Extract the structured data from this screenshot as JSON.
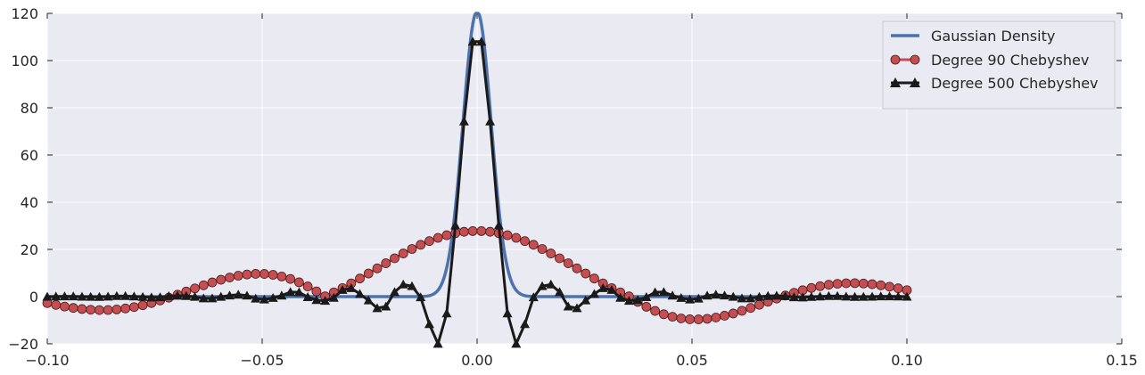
{
  "chart_data": {
    "type": "line",
    "title": "",
    "xlabel": "",
    "ylabel": "",
    "xlim": [
      -0.1,
      0.15
    ],
    "ylim": [
      -20,
      120
    ],
    "xticks": [
      -0.1,
      -0.05,
      0.0,
      0.05,
      0.1,
      0.15
    ],
    "xtick_labels": [
      "−0.10",
      "−0.05",
      "0.00",
      "0.05",
      "0.10",
      "0.15"
    ],
    "yticks": [
      -20,
      0,
      20,
      40,
      60,
      80,
      100,
      120
    ],
    "ytick_labels": [
      "−20",
      "0",
      "20",
      "40",
      "60",
      "80",
      "100",
      "120"
    ],
    "grid": true,
    "legend_position": "top-right",
    "series": [
      {
        "name": "Gaussian Density",
        "color": "#4c72b0",
        "marker": "none",
        "sigma": 0.0033,
        "x_range": [
          -0.1,
          0.1
        ],
        "peak": 120
      },
      {
        "name": "Degree 90 Chebyshev",
        "color": "#c44e52",
        "marker": "circle",
        "x_range": [
          -0.1,
          0.1
        ],
        "points": 100
      },
      {
        "name": "Degree 500 Chebyshev",
        "color": "#1a1a1a",
        "marker": "triangle",
        "x_range": [
          -0.1,
          0.1
        ],
        "points": 100
      }
    ]
  }
}
